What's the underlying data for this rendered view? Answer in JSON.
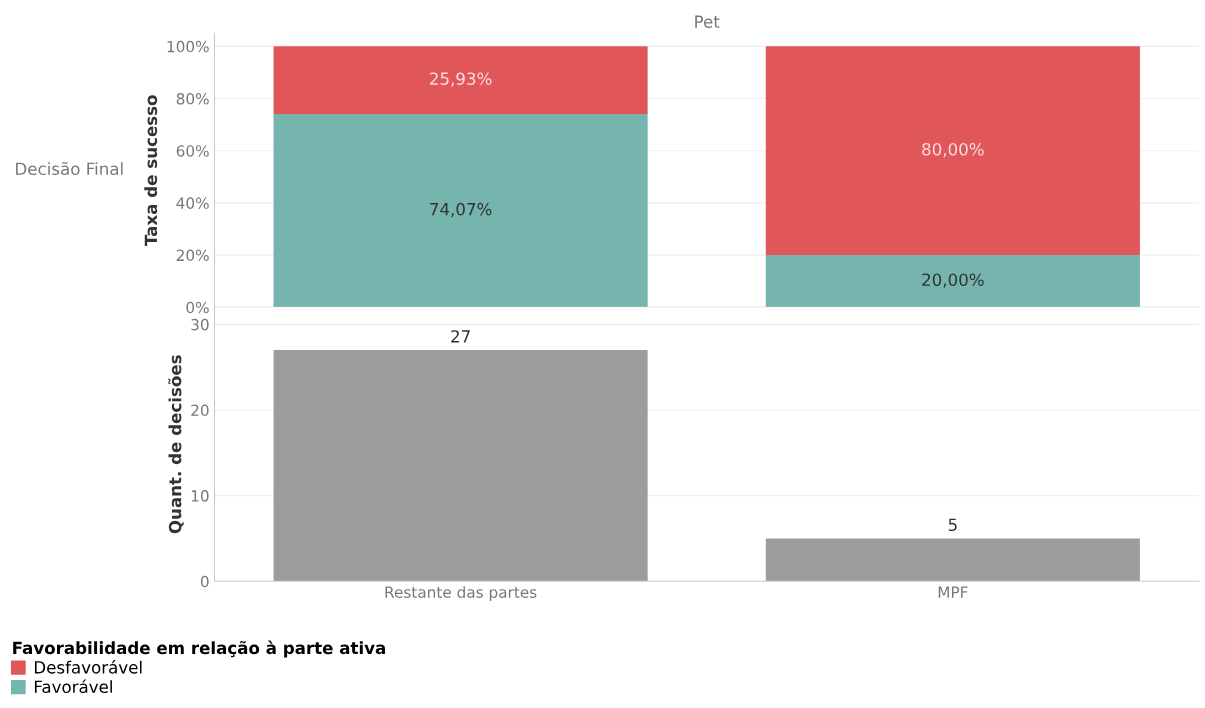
{
  "chart_data": [
    {
      "type": "bar",
      "title": "Pet",
      "ylabel": "Taxa de sucesso",
      "annotations": [
        "Decisão Final"
      ],
      "categories": [
        null,
        null
      ],
      "stacked": true,
      "legend_title": "Favorabilidade em relação à parte ativa",
      "legend": "bottom left",
      "grid": "y",
      "tick_labels": "y",
      "series": [
        {
          "name": "Favorável",
          "color": "#76b5ae",
          "values": [
            74.07,
            20.0
          ],
          "value_labels": [
            "74,07%",
            "20,00%"
          ]
        },
        {
          "name": "Desfavorável",
          "color": "#e15759",
          "values": [
            25.93,
            80.0
          ],
          "value_labels": [
            "25,93%",
            "80,00%"
          ]
        }
      ],
      "ylim": [
        0,
        105
      ],
      "yticks": [
        {
          "value": 0,
          "label": "0%"
        },
        {
          "value": 20,
          "label": "20%"
        },
        {
          "value": 40,
          "label": "40%"
        },
        {
          "value": 60,
          "label": "60%"
        },
        {
          "value": 80,
          "label": "80%"
        },
        {
          "value": 100,
          "label": "100%"
        }
      ]
    },
    {
      "type": "bar",
      "ylabel": "Quant. de decisões",
      "categories": [
        "Restante das partes",
        "MPF"
      ],
      "values": [
        27,
        5
      ],
      "color": "#9c9c9c",
      "data_labels": true,
      "grid": "y",
      "ylim": [
        0,
        32
      ],
      "yticks": [
        0,
        10,
        20,
        30
      ]
    }
  ]
}
